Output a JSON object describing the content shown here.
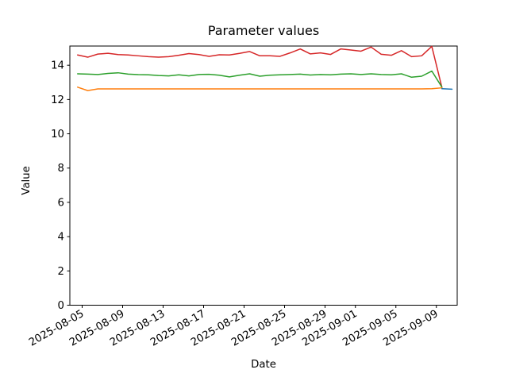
{
  "chart_data": {
    "type": "line",
    "title": "Parameter values",
    "xlabel": "Date",
    "ylabel": "Value",
    "ylim": [
      0,
      15.12
    ],
    "yticks": [
      0,
      2,
      4,
      6,
      8,
      10,
      12,
      14
    ],
    "xtick_labels": [
      "2025-08-05",
      "2025-08-09",
      "2025-08-13",
      "2025-08-17",
      "2025-08-21",
      "2025-08-25",
      "2025-08-29",
      "2025-09-01",
      "2025-09-05",
      "2025-09-09"
    ],
    "x_start_date": "2025-08-04",
    "grid": false,
    "legend": "none",
    "series": [
      {
        "name": "red",
        "color": "#d62728",
        "start_date": "2025-08-04",
        "frequency": "daily",
        "values": [
          14.6,
          14.47,
          14.65,
          14.7,
          14.62,
          14.6,
          14.55,
          14.5,
          14.47,
          14.5,
          14.58,
          14.68,
          14.62,
          14.52,
          14.61,
          14.6,
          14.69,
          14.8,
          14.55,
          14.55,
          14.52,
          14.72,
          14.95,
          14.66,
          14.72,
          14.63,
          14.95,
          14.89,
          14.82,
          15.06,
          14.64,
          14.58,
          14.85,
          14.5,
          14.55,
          15.1,
          12.7
        ]
      },
      {
        "name": "green",
        "color": "#2ca02c",
        "start_date": "2025-08-04",
        "frequency": "daily",
        "values": [
          13.5,
          13.48,
          13.46,
          13.52,
          13.56,
          13.48,
          13.45,
          13.44,
          13.4,
          13.38,
          13.44,
          13.38,
          13.46,
          13.47,
          13.42,
          13.32,
          13.42,
          13.5,
          13.36,
          13.42,
          13.44,
          13.46,
          13.48,
          13.43,
          13.46,
          13.44,
          13.48,
          13.5,
          13.46,
          13.5,
          13.46,
          13.44,
          13.5,
          13.3,
          13.36,
          13.66,
          12.72
        ]
      },
      {
        "name": "orange",
        "color": "#ff7f0e",
        "start_date": "2025-08-04",
        "frequency": "daily",
        "values": [
          12.72,
          12.52,
          12.62,
          12.62,
          12.62,
          12.62,
          12.62,
          12.62,
          12.62,
          12.62,
          12.62,
          12.62,
          12.62,
          12.62,
          12.62,
          12.62,
          12.62,
          12.62,
          12.62,
          12.62,
          12.62,
          12.62,
          12.62,
          12.62,
          12.62,
          12.62,
          12.62,
          12.62,
          12.62,
          12.62,
          12.62,
          12.62,
          12.62,
          12.62,
          12.62,
          12.63,
          12.68
        ]
      },
      {
        "name": "blue",
        "color": "#1f77b4",
        "start_date": "2025-09-09",
        "frequency": "daily",
        "values": [
          12.63,
          12.6
        ]
      }
    ]
  }
}
